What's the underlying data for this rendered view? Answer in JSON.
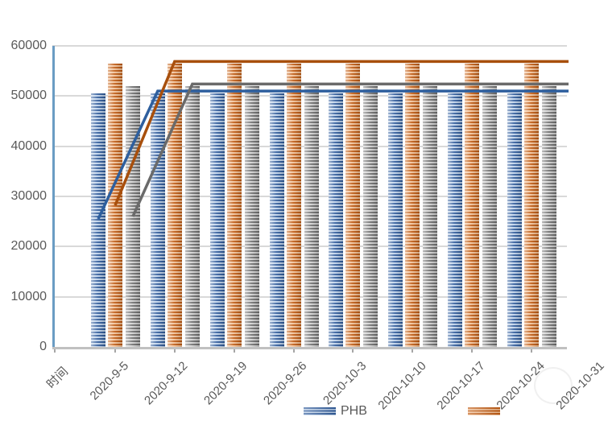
{
  "chart_data": {
    "type": "bar",
    "title": "",
    "xlabel": "时间",
    "ylabel": "",
    "ylim": [
      0,
      60000
    ],
    "yticks": [
      0,
      10000,
      20000,
      30000,
      40000,
      50000,
      60000
    ],
    "grid": true,
    "legend_position": "bottom",
    "categories": [
      "2020-9-5",
      "2020-9-12",
      "2020-9-19",
      "2020-9-26",
      "2020-10-3",
      "2020-10-10",
      "2020-10-17",
      "2020-10-24",
      "2020-10-31"
    ],
    "bar_series": [
      {
        "key": "blue",
        "stripe_dark": "#2f5b9b",
        "stripe_light": "#bdd1ea",
        "values": [
          50500,
          50500,
          50500,
          50500,
          50500,
          50500,
          50500,
          50500
        ]
      },
      {
        "key": "orange",
        "stripe_dark": "#c05a11",
        "stripe_light": "#f2c096",
        "values": [
          56500,
          56500,
          56500,
          56500,
          56500,
          56500,
          56500,
          56500
        ]
      },
      {
        "key": "gray",
        "stripe_dark": "#6f6f6f",
        "stripe_light": "#d0d0d0",
        "values": [
          52000,
          52000,
          52000,
          52000,
          52000,
          52000,
          52000,
          52000
        ]
      }
    ],
    "line_series": [
      {
        "key": "blue",
        "color": "#2e5f9e",
        "values": [
          25500,
          51000,
          51000,
          51000,
          51000,
          51000,
          51000,
          51000
        ]
      },
      {
        "key": "orange",
        "color": "#a84f0c",
        "values": [
          28200,
          56900,
          56900,
          56900,
          56900,
          56900,
          56900,
          56900
        ]
      },
      {
        "key": "gray",
        "color": "#6a6a6a",
        "values": [
          26000,
          52400,
          52400,
          52400,
          52400,
          52400,
          52400,
          52400
        ]
      }
    ],
    "legend": [
      {
        "label": "PHB",
        "series_index": 0
      },
      {
        "label": "",
        "series_index": 1
      }
    ]
  },
  "colors": {
    "y_axis_line": "#6a9cc3",
    "x_axis_line": "#c0c0c0",
    "gridline": "#d9d9d9",
    "tick": "#a6a6a6",
    "label_text": "#595959"
  }
}
